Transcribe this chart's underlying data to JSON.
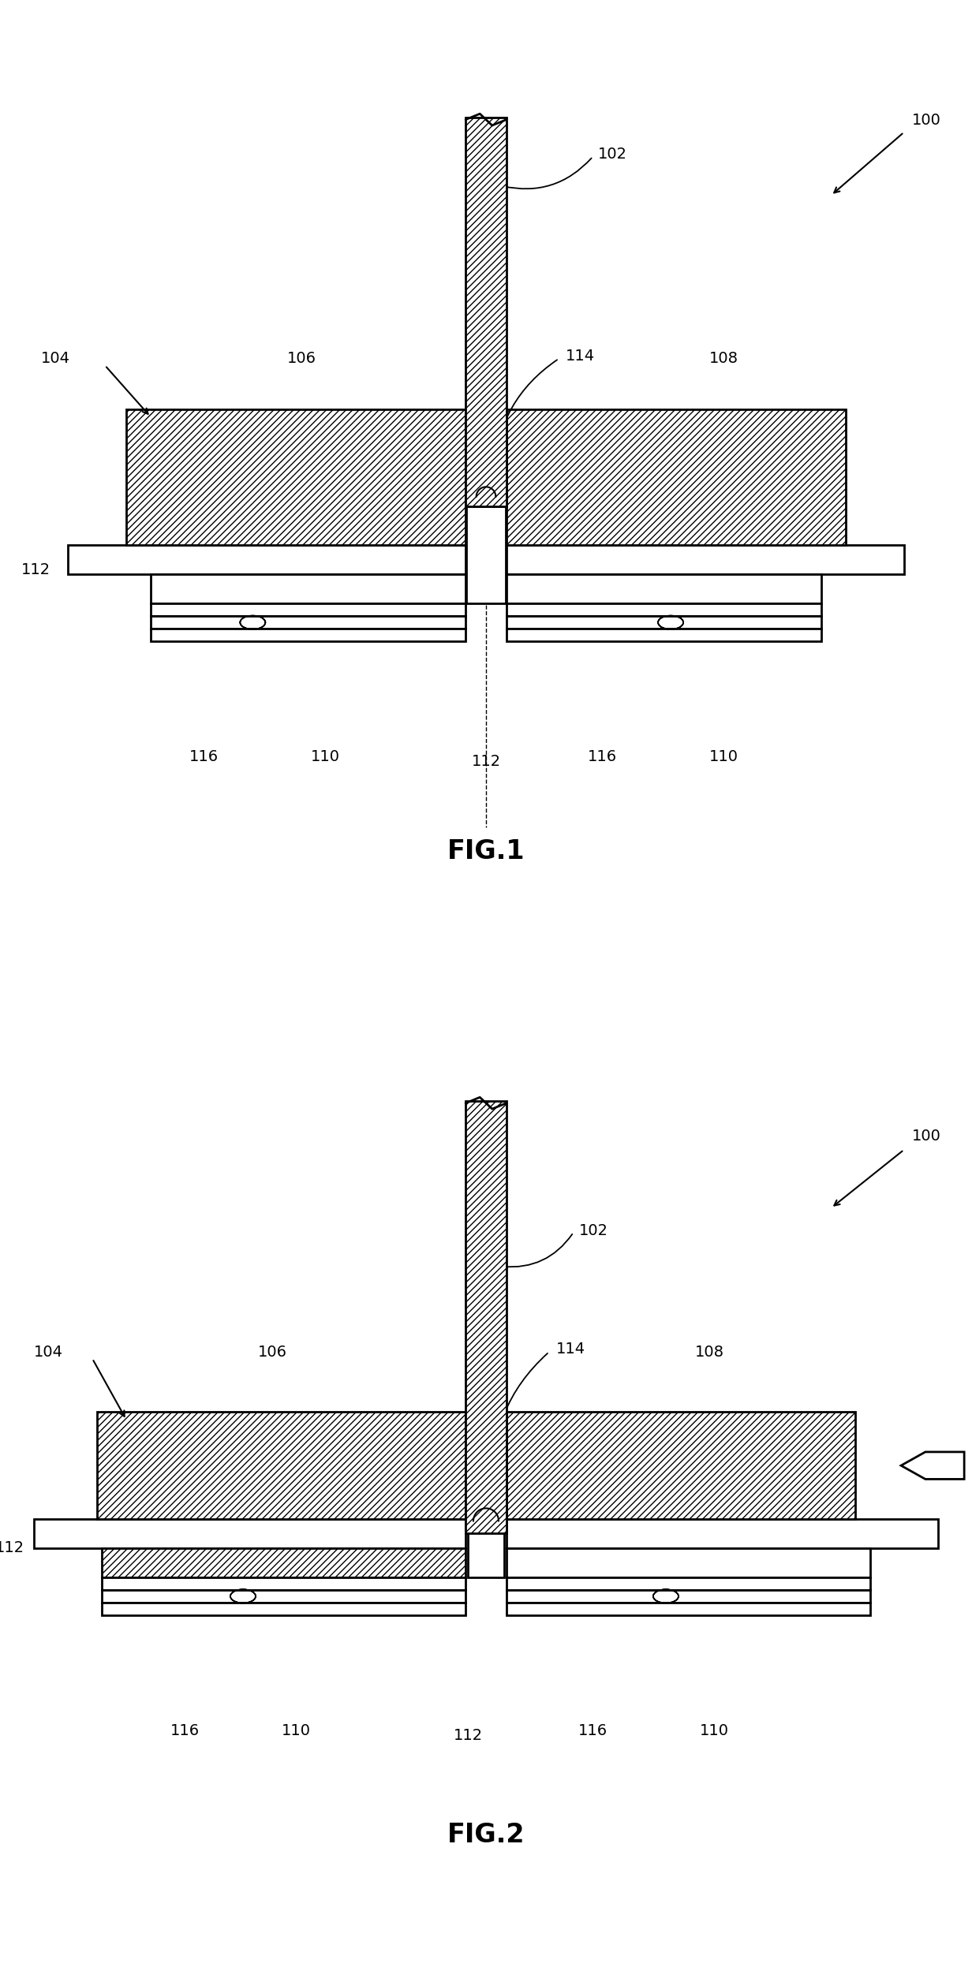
{
  "background": "#ffffff",
  "line_color": "#000000",
  "hatch": "////",
  "lw": 2.0,
  "label_fs": 14,
  "title_fs": 24,
  "fig1_title": "FIG.1",
  "fig2_title": "FIG.2"
}
